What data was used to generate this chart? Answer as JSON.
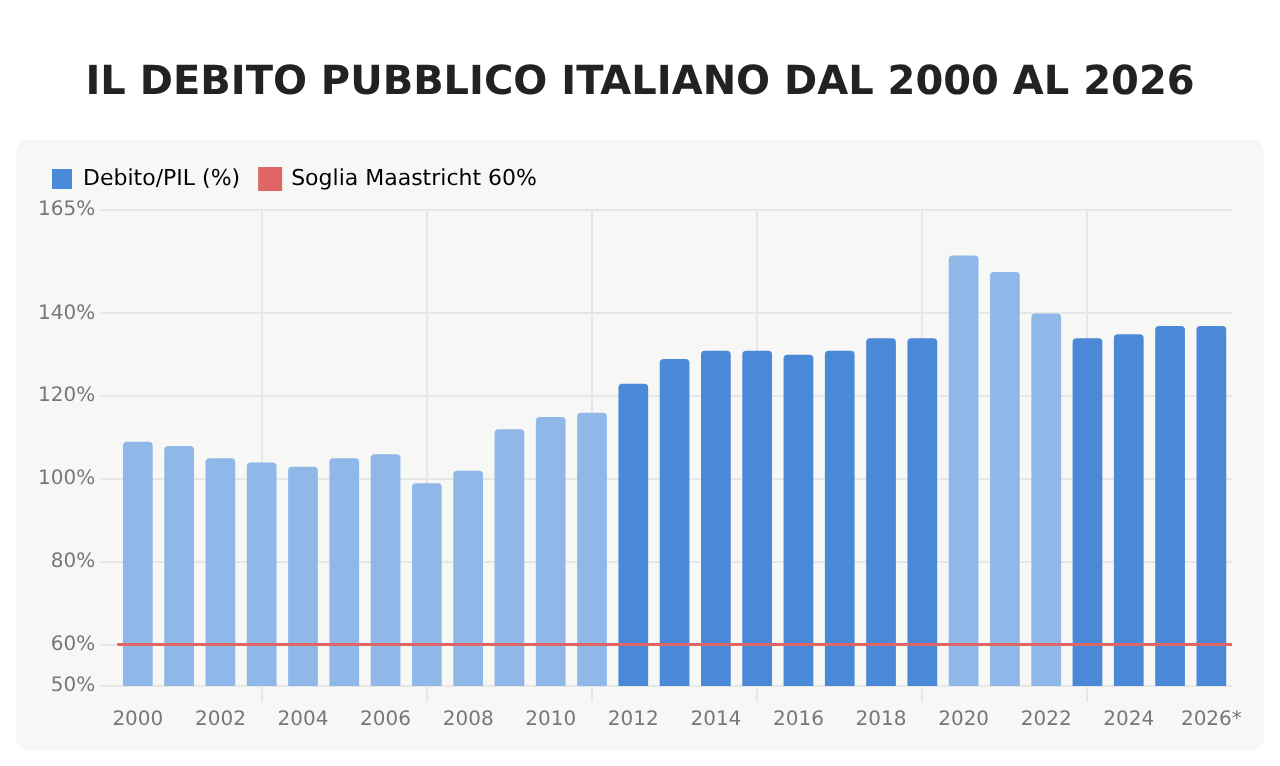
{
  "chart_data": {
    "type": "bar",
    "title": "IL DEBITO PUBBLICO ITALIANO DAL 2000 AL 2026",
    "categories": [
      "2000",
      null,
      "2002",
      null,
      "2004",
      null,
      "2006",
      null,
      "2008",
      null,
      "2010",
      null,
      "2012",
      null,
      "2014",
      null,
      "2016",
      null,
      "2018",
      null,
      "2020",
      null,
      "2022",
      null,
      "2024",
      null,
      "2026*"
    ],
    "series": [
      {
        "name": "Debito/PIL (%)",
        "color": "#4a89d8",
        "values": [
          109,
          108,
          105,
          104,
          103,
          105,
          106,
          99,
          102,
          112,
          115,
          116,
          123,
          129,
          131,
          131,
          130,
          131,
          134,
          134,
          154,
          150,
          140,
          134,
          135,
          137,
          137
        ],
        "colors": [
          "#8fb8e8",
          "#8fb8e8",
          "#8fb8e8",
          "#8fb8e8",
          "#8fb8e8",
          "#8fb8e8",
          "#8fb8e8",
          "#8fb8e8",
          "#8fb8e8",
          "#8fb8e8",
          "#8fb8e8",
          "#8fb8e8",
          "#4a89d8",
          "#4a89d8",
          "#4a89d8",
          "#4a89d8",
          "#4a89d8",
          "#4a89d8",
          "#4a89d8",
          "#4a89d8",
          "#8fb8e8",
          "#8fb8e8",
          "#8fb8e8",
          "#4a89d8",
          "#4a89d8",
          "#4a89d8",
          "#4a89d8"
        ]
      }
    ],
    "ylim": [
      50,
      165
    ],
    "yticks": [
      {
        "value": 50,
        "label": "50%"
      },
      {
        "value": 60,
        "label": "60%"
      },
      {
        "value": 80,
        "label": "80%"
      },
      {
        "value": 100,
        "label": "100%"
      },
      {
        "value": 120,
        "label": "120%"
      },
      {
        "value": 140,
        "label": "140%"
      },
      {
        "value": 165,
        "label": "165%"
      }
    ],
    "ref_lines": [
      {
        "axis": "y",
        "value": 60,
        "label": "Soglia Maastricht 60%",
        "color": "#e06666"
      }
    ],
    "grid": true,
    "legend": "top left"
  }
}
